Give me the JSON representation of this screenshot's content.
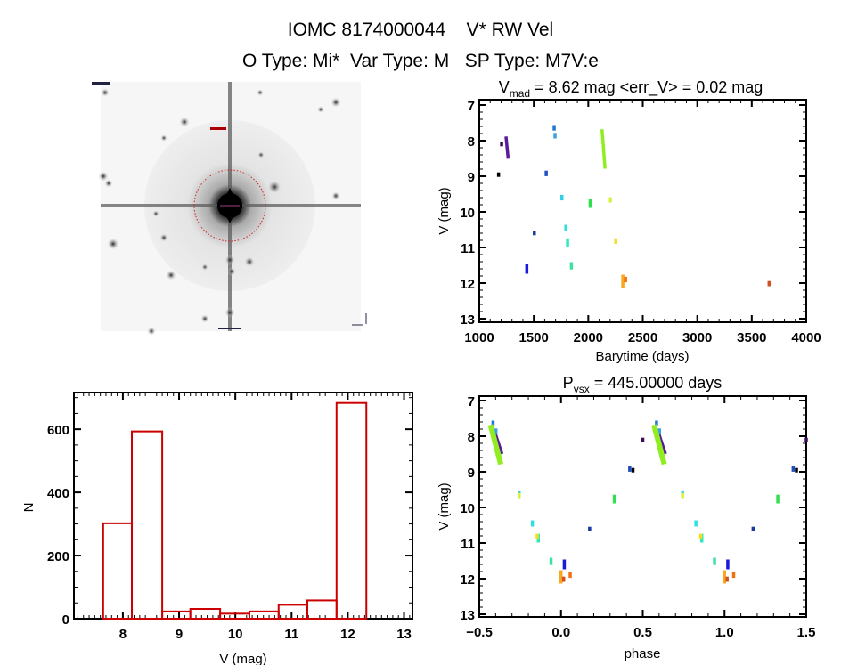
{
  "header": {
    "line1": "IOMC 8174000044    V* RW Vel",
    "line2": "O Type: Mi*  Var Type: M   SP Type: M7V:e"
  },
  "sky_image": {
    "description_icon": "sky-cutout-image",
    "marker_color": "#d02020"
  },
  "chart_data": [
    {
      "id": "histogram",
      "type": "bar",
      "style": "step-outline",
      "color": "#cc0000",
      "xlabel": "V (mag)",
      "ylabel": "N",
      "xlim": [
        7.13,
        13.15
      ],
      "ylim": [
        0,
        716
      ],
      "xticks": [
        "8",
        "9",
        "10",
        "11",
        "12",
        "13"
      ],
      "yticks": [
        "0",
        "200",
        "400",
        "600"
      ],
      "bin_edges": [
        7.65,
        8.16,
        8.7,
        9.2,
        9.73,
        10.25,
        10.77,
        11.28,
        11.8,
        12.33
      ],
      "values": [
        302,
        593,
        23,
        31,
        16,
        23,
        44,
        58,
        683
      ]
    },
    {
      "id": "lightcurve",
      "type": "scatter",
      "title_main": "V",
      "title_sub": "mad",
      "title_rest": " = 8.62 mag <err_V> = 0.02 mag",
      "xlabel": "Barytime (days)",
      "ylabel": "V (mag)",
      "xlim": [
        1000,
        4000
      ],
      "ylim": [
        13.1,
        6.85
      ],
      "y_inverted": true,
      "xticks": [
        "1000",
        "1500",
        "2000",
        "2500",
        "3000",
        "3500",
        "4000"
      ],
      "yticks": [
        "7",
        "8",
        "9",
        "10",
        "11",
        "12",
        "13"
      ],
      "points": [
        {
          "t": [
            1177,
            1177
          ],
          "v": [
            8.93,
            8.98
          ],
          "phase": 0.44,
          "color": "#000000"
        },
        {
          "t": [
            1205,
            1205
          ],
          "v": [
            8.08,
            8.12
          ],
          "phase": 0.5,
          "color": "#3b0a5a"
        },
        {
          "t": [
            1245,
            1265
          ],
          "v": [
            7.92,
            8.47
          ],
          "phase": -0.39,
          "color": "#5a1a9a"
        },
        {
          "t": [
            1436,
            1436
          ],
          "v": [
            11.5,
            11.7
          ],
          "phase": 0.02,
          "color": "#1a1add"
        },
        {
          "t": [
            1505,
            1505
          ],
          "v": [
            10.58,
            10.62
          ],
          "phase": 0.175,
          "color": "#1a3a9a"
        },
        {
          "t": [
            1614,
            1614
          ],
          "v": [
            8.88,
            8.96
          ],
          "phase": 0.42,
          "color": "#1e50c0"
        },
        {
          "t": [
            1687,
            1687
          ],
          "v": [
            7.6,
            7.68
          ],
          "phase": -0.416,
          "color": "#1e78d0"
        },
        {
          "t": [
            1695,
            1695
          ],
          "v": [
            7.82,
            7.9
          ],
          "phase": -0.398,
          "color": "#3aa0e0"
        },
        {
          "t": [
            1758,
            1758
          ],
          "v": [
            9.56,
            9.64
          ],
          "phase": -0.256,
          "color": "#30d0e8"
        },
        {
          "t": [
            1794,
            1794
          ],
          "v": [
            10.4,
            10.5
          ],
          "phase": -0.175,
          "color": "#30e0e0"
        },
        {
          "t": [
            1810,
            1810
          ],
          "v": [
            10.78,
            10.95
          ],
          "phase": -0.139,
          "color": "#30e8c0"
        },
        {
          "t": [
            1845,
            1845
          ],
          "v": [
            11.45,
            11.58
          ],
          "phase": -0.061,
          "color": "#40e0a0"
        },
        {
          "t": [
            2017,
            2017
          ],
          "v": [
            9.68,
            9.85
          ],
          "phase": 0.326,
          "color": "#30e050"
        },
        {
          "t": [
            2126,
            2154
          ],
          "v": [
            7.72,
            8.75
          ],
          "phase": -0.4,
          "color": "#90ee20"
        },
        {
          "t": [
            2203,
            2203
          ],
          "v": [
            9.63,
            9.7
          ],
          "phase": -0.256,
          "color": "#d8f040"
        },
        {
          "t": [
            2252,
            2252
          ],
          "v": [
            10.78,
            10.86
          ],
          "phase": -0.146,
          "color": "#f0e020"
        },
        {
          "t": [
            2317,
            2317
          ],
          "v": [
            11.8,
            12.1
          ],
          "phase": 0.0,
          "color": "#f8a820"
        },
        {
          "t": [
            2342,
            2342
          ],
          "v": [
            11.86,
            11.94
          ],
          "phase": 0.056,
          "color": "#f07010"
        },
        {
          "t": [
            3659,
            3659
          ],
          "v": [
            11.98,
            12.05
          ],
          "phase": 0.016,
          "color": "#d05020"
        }
      ]
    },
    {
      "id": "phased",
      "type": "scatter",
      "title_main": "P",
      "title_sub": "vsx",
      "title_rest": " = 445.00000 days",
      "xlabel": "phase",
      "ylabel": "V (mag)",
      "xlim": [
        -0.5,
        1.5
      ],
      "ylim": [
        13.075,
        6.875
      ],
      "y_inverted": true,
      "xticks": [
        "−0.5",
        "0.0",
        "0.5",
        "1.0",
        "1.5"
      ],
      "yticks": [
        "7",
        "8",
        "9",
        "10",
        "11",
        "12",
        "13"
      ],
      "source": "lightcurve points folded, plotted at phase and phase+1"
    }
  ]
}
